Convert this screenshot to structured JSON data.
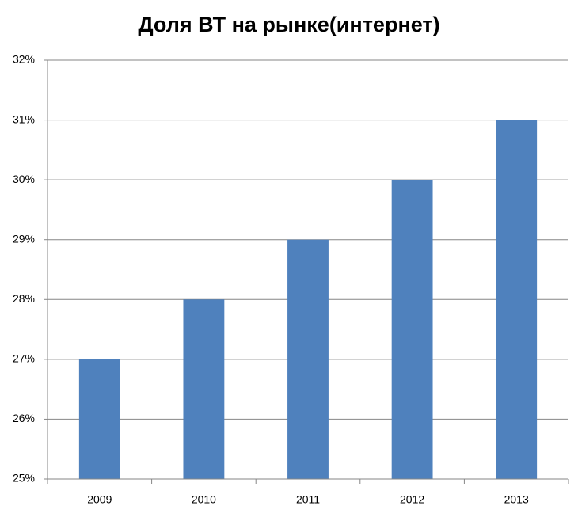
{
  "chart_data": {
    "type": "bar",
    "title": "Доля ВТ  на рынке(интернет)",
    "categories": [
      "2009",
      "2010",
      "2011",
      "2012",
      "2013"
    ],
    "values": [
      27,
      28,
      29,
      30,
      31
    ],
    "color": "#4f81bd",
    "ylim": [
      25,
      32
    ],
    "yticks": [
      {
        "value": 25,
        "label": "25%"
      },
      {
        "value": 26,
        "label": "26%"
      },
      {
        "value": 27,
        "label": "27%"
      },
      {
        "value": 28,
        "label": "28%"
      },
      {
        "value": 29,
        "label": "29%"
      },
      {
        "value": 30,
        "label": "30%"
      },
      {
        "value": 31,
        "label": "31%"
      },
      {
        "value": 32,
        "label": "32%"
      }
    ],
    "grid": true
  }
}
